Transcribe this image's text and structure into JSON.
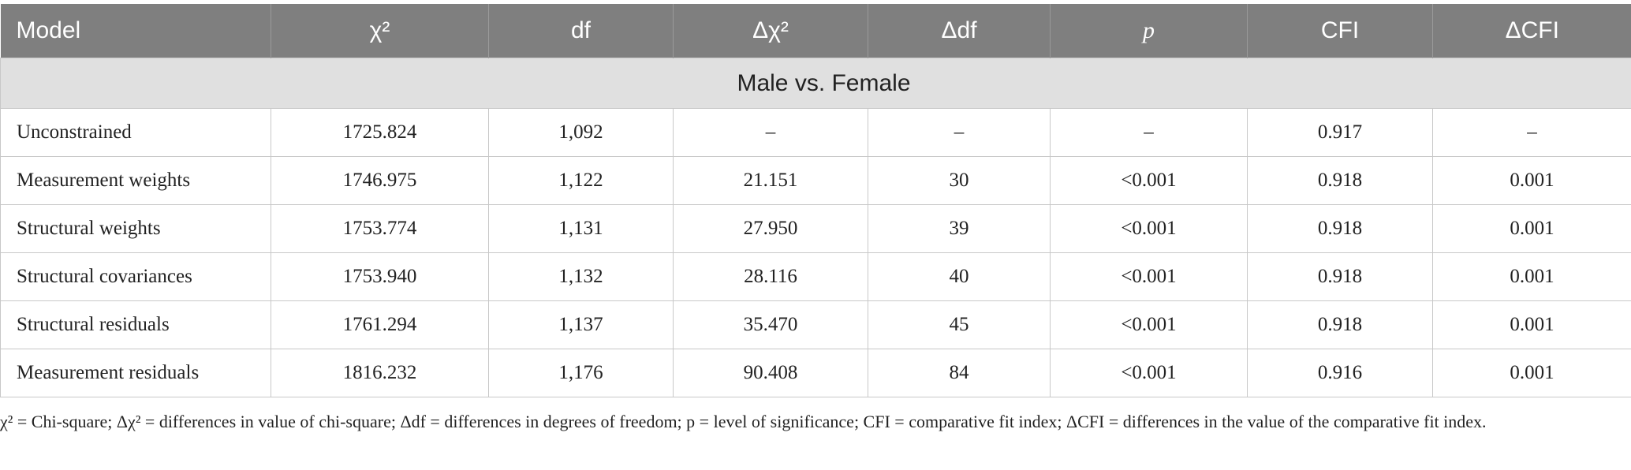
{
  "table": {
    "header": [
      "Model",
      "χ²",
      "df",
      "Δχ²",
      "Δdf",
      "p",
      "CFI",
      "ΔCFI"
    ],
    "section": "Male vs. Female",
    "rows": [
      [
        "Unconstrained",
        "1725.824",
        "1,092",
        "–",
        "–",
        "–",
        "0.917",
        "–"
      ],
      [
        "Measurement weights",
        "1746.975",
        "1,122",
        "21.151",
        "30",
        "<0.001",
        "0.918",
        "0.001"
      ],
      [
        "Structural weights",
        "1753.774",
        "1,131",
        "27.950",
        "39",
        "<0.001",
        "0.918",
        "0.001"
      ],
      [
        "Structural covariances",
        "1753.940",
        "1,132",
        "28.116",
        "40",
        "<0.001",
        "0.918",
        "0.001"
      ],
      [
        "Structural residuals",
        "1761.294",
        "1,137",
        "35.470",
        "45",
        "<0.001",
        "0.918",
        "0.001"
      ],
      [
        "Measurement residuals",
        "1816.232",
        "1,176",
        "90.408",
        "84",
        "<0.001",
        "0.916",
        "0.001"
      ]
    ]
  },
  "footnote": "χ² = Chi-square; Δχ² = differences in value of chi-square; Δdf = differences in degrees of freedom; p = level of significance; CFI = comparative fit index; ΔCFI = differences in the value of the comparative fit index."
}
